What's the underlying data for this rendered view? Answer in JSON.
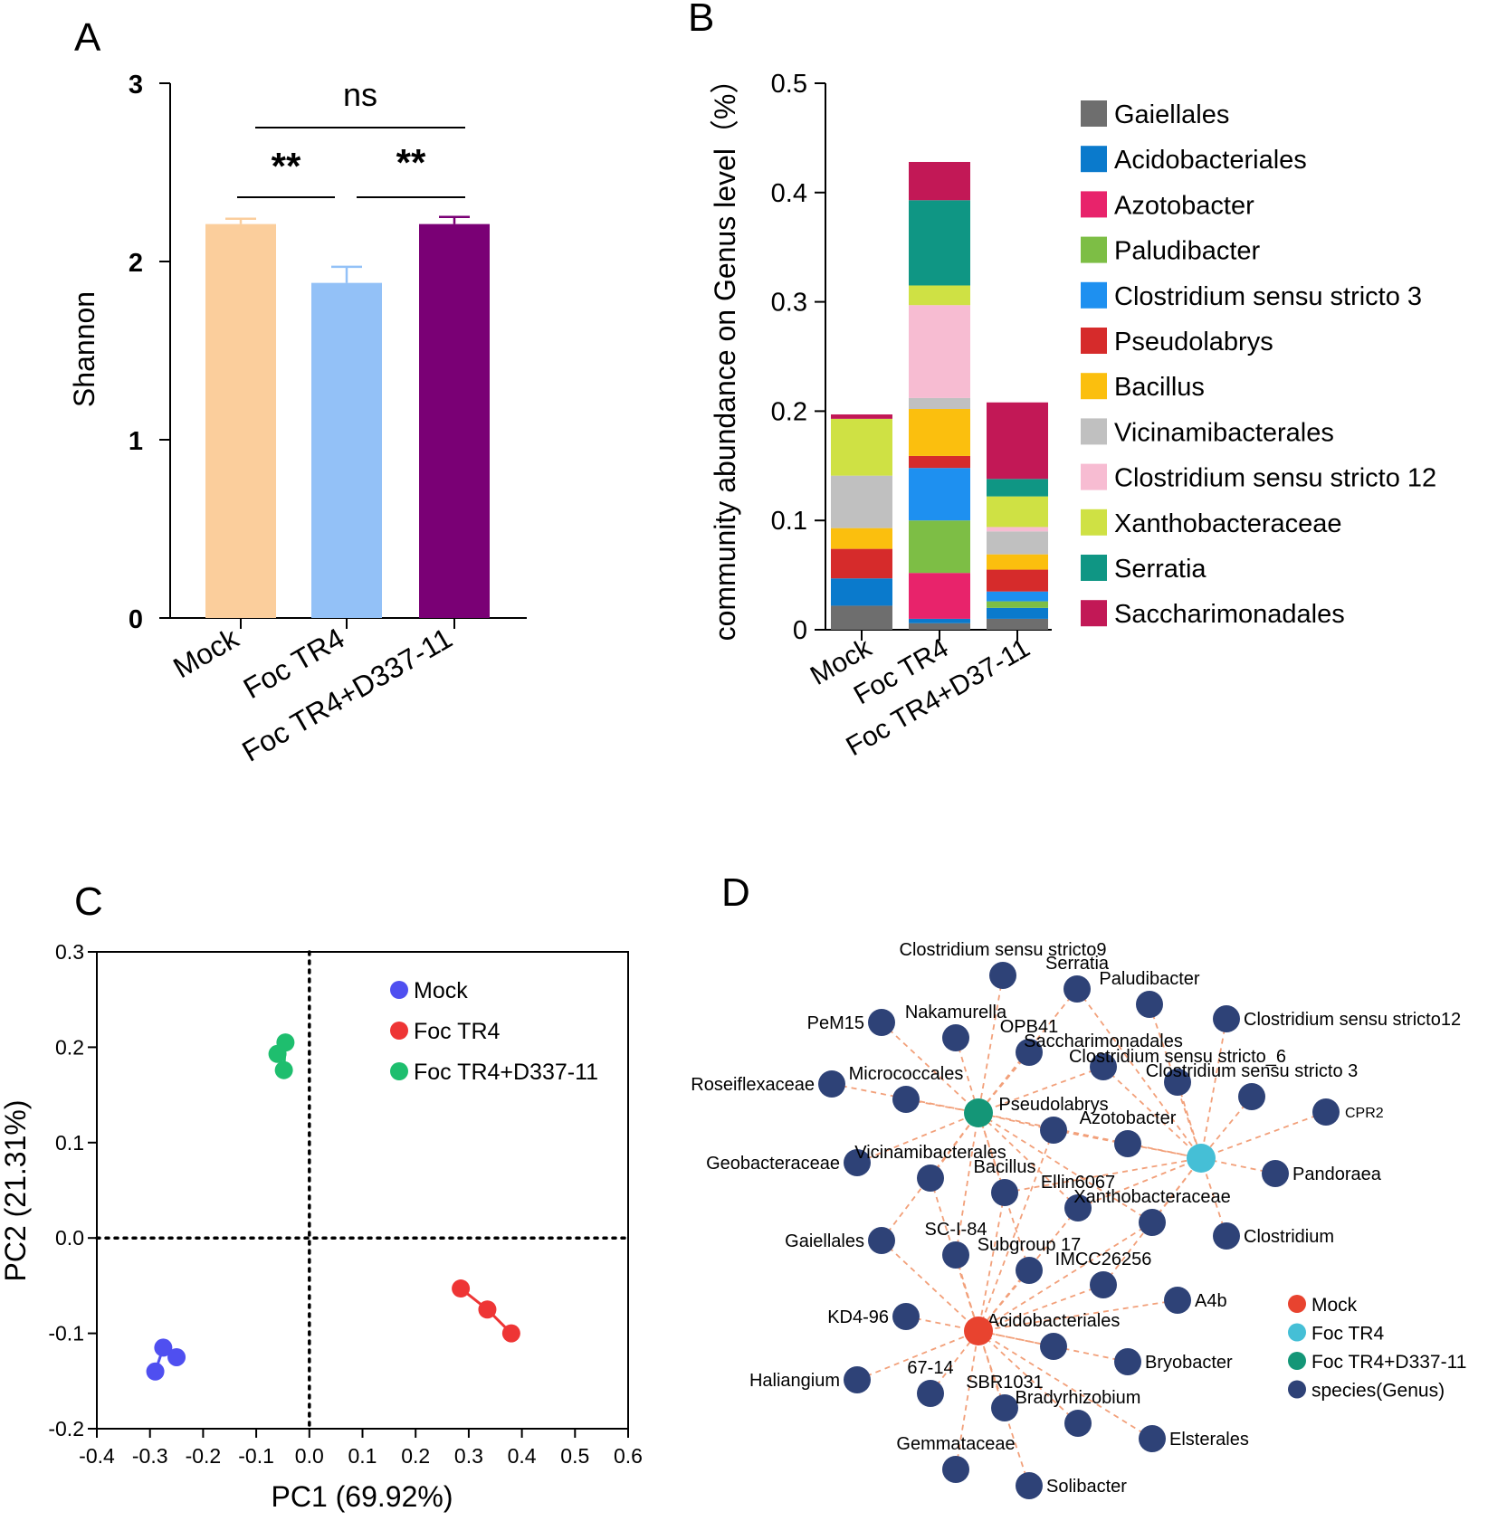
{
  "panels": {
    "a": "A",
    "b": "B",
    "c": "C",
    "d": "D"
  },
  "colors": {
    "mock_bar": "#FBCE9C",
    "foc_bar": "#93C1F7",
    "foc_d337_bar": "#7A0075",
    "net_mock": "#E8432F",
    "net_foc": "#45BFD6",
    "net_foc_d337": "#149677",
    "net_species": "#2E4277",
    "edge": "#F2A07A"
  },
  "chart_data": [
    {
      "id": "A",
      "type": "bar",
      "title": "",
      "xlabel": "",
      "ylabel": "Shannon",
      "ylim": [
        0,
        3
      ],
      "yticks": [
        "0",
        "1",
        "2",
        "3"
      ],
      "categories": [
        "Mock",
        "Foc TR4",
        "Foc TR4+D337-11"
      ],
      "values": [
        2.21,
        1.88,
        2.21
      ],
      "errors": [
        0.03,
        0.09,
        0.04
      ],
      "significance": [
        {
          "from": 0,
          "to": 1,
          "label": "**"
        },
        {
          "from": 1,
          "to": 2,
          "label": "**"
        },
        {
          "from": 0,
          "to": 2,
          "label": "ns"
        }
      ]
    },
    {
      "id": "B",
      "type": "bar",
      "stacked": true,
      "title": "",
      "xlabel": "",
      "ylabel": "community abundance on Genus level（%）",
      "ylim": [
        0,
        0.5
      ],
      "yticks": [
        "0",
        "0.1",
        "0.2",
        "0.3",
        "0.4",
        "0.5"
      ],
      "categories": [
        "Mock",
        "Foc TR4",
        "Foc TR4+D37-11"
      ],
      "series": [
        {
          "name": "Gaiellales",
          "color": "#6E6E6E",
          "values": [
            0.022,
            0.006,
            0.01
          ]
        },
        {
          "name": "Acidobacteriales",
          "color": "#0A7ACC",
          "values": [
            0.025,
            0.004,
            0.01
          ]
        },
        {
          "name": "Azotobacter",
          "color": "#E8236B",
          "values": [
            0.0,
            0.042,
            0.0
          ]
        },
        {
          "name": "Paludibacter",
          "color": "#7DBE45",
          "values": [
            0.0,
            0.048,
            0.006
          ]
        },
        {
          "name": "Clostridium sensu stricto 3",
          "color": "#1E90F0",
          "values": [
            0.0,
            0.048,
            0.009
          ]
        },
        {
          "name": "Pseudolabrys",
          "color": "#D62B2B",
          "values": [
            0.027,
            0.011,
            0.02
          ]
        },
        {
          "name": "Bacillus",
          "color": "#FBBF0E",
          "values": [
            0.019,
            0.043,
            0.014
          ]
        },
        {
          "name": "Vicinamibacterales",
          "color": "#C0C0C0",
          "values": [
            0.048,
            0.01,
            0.021
          ]
        },
        {
          "name": "Clostridium sensu stricto 12",
          "color": "#F7BCD2",
          "values": [
            0.0,
            0.085,
            0.004
          ]
        },
        {
          "name": "Xanthobacteraceae",
          "color": "#CFE144",
          "values": [
            0.052,
            0.018,
            0.028
          ]
        },
        {
          "name": "Serratia",
          "color": "#0F9684",
          "values": [
            0.0,
            0.078,
            0.016
          ]
        },
        {
          "name": "Saccharimonadales",
          "color": "#C21856",
          "values": [
            0.004,
            0.035,
            0.07
          ]
        }
      ]
    },
    {
      "id": "C",
      "type": "scatter",
      "title": "",
      "xlabel": "PC1 (69.92%)",
      "ylabel": "PC2 (21.31%)",
      "xlim": [
        -0.4,
        0.6
      ],
      "ylim": [
        -0.2,
        0.3
      ],
      "xticks": [
        "-0.4",
        "-0.3",
        "-0.2",
        "-0.1",
        "0.0",
        "0.1",
        "0.2",
        "0.3",
        "0.4",
        "0.5",
        "0.6"
      ],
      "yticks": [
        "-0.2",
        "-0.1",
        "0.0",
        "0.1",
        "0.2",
        "0.3"
      ],
      "legend_position": "top-right",
      "series": [
        {
          "name": "Mock",
          "color": "#4F4FF0",
          "points": [
            [
              -0.29,
              -0.14
            ],
            [
              -0.275,
              -0.115
            ],
            [
              -0.25,
              -0.125
            ]
          ]
        },
        {
          "name": "Foc TR4",
          "color": "#EE3535",
          "points": [
            [
              0.285,
              -0.053
            ],
            [
              0.335,
              -0.075
            ],
            [
              0.38,
              -0.1
            ]
          ]
        },
        {
          "name": "Foc TR4+D337-11",
          "color": "#1EBE6E",
          "points": [
            [
              -0.06,
              0.193
            ],
            [
              -0.045,
              0.205
            ],
            [
              -0.048,
              0.176
            ]
          ]
        }
      ]
    }
  ],
  "network": {
    "legend": [
      "Mock",
      "Foc TR4",
      "Foc TR4+D337-11",
      "species(Genus)"
    ],
    "hubs": [
      "Foc TR4+D337-11",
      "Foc TR4",
      "Mock"
    ],
    "nodes": [
      {
        "id": "clo9",
        "label": "Clostridium sensu stricto9",
        "links": [
          0
        ]
      },
      {
        "id": "serratia",
        "label": "Serratia",
        "links": [
          0,
          1
        ]
      },
      {
        "id": "paludibacter",
        "label": "Paludibacter",
        "links": [
          1
        ]
      },
      {
        "id": "clo12",
        "label": "Clostridium sensu stricto12",
        "links": [
          1
        ]
      },
      {
        "id": "pem15",
        "label": "PeM15",
        "links": [
          0
        ]
      },
      {
        "id": "nakamurella",
        "label": "Nakamurella",
        "links": [
          0
        ]
      },
      {
        "id": "opb41",
        "label": "OPB41",
        "links": [
          0
        ]
      },
      {
        "id": "saccharimonadales",
        "label": "Saccharimonadales",
        "links": [
          0,
          1
        ]
      },
      {
        "id": "clo6",
        "label": "Clostridium sensu stricto_6",
        "links": [
          1
        ]
      },
      {
        "id": "clo3",
        "label": "Clostridium sensu stricto 3",
        "links": [
          1
        ]
      },
      {
        "id": "roseiflexaceae",
        "label": "Roseiflexaceae",
        "links": [
          0
        ]
      },
      {
        "id": "micrococcales",
        "label": "Micrococcales",
        "links": [
          0
        ]
      },
      {
        "id": "pseudolabrys",
        "label": "Pseudolabrys",
        "links": [
          0,
          1,
          2
        ]
      },
      {
        "id": "azotobacter",
        "label": "Azotobacter",
        "links": [
          0,
          1
        ]
      },
      {
        "id": "cpr2",
        "label": "CPR2",
        "links": [
          1
        ]
      },
      {
        "id": "geobacteraceae",
        "label": "Geobacteraceae",
        "links": [
          0
        ]
      },
      {
        "id": "vicinamibacterales",
        "label": "Vicinamibacterales",
        "links": [
          0,
          2
        ]
      },
      {
        "id": "bacillus",
        "label": "Bacillus",
        "links": [
          0,
          1,
          2
        ]
      },
      {
        "id": "ellin6067",
        "label": "Ellin6067",
        "links": [
          0,
          1,
          2
        ]
      },
      {
        "id": "pandoraea",
        "label": "Pandoraea",
        "links": [
          1
        ]
      },
      {
        "id": "xanthobacteraceae",
        "label": "Xanthobacteraceae",
        "links": [
          0,
          1,
          2
        ]
      },
      {
        "id": "gaiellales",
        "label": "Gaiellales",
        "links": [
          0,
          2
        ]
      },
      {
        "id": "sci84",
        "label": "SC-I-84",
        "links": [
          0,
          2
        ]
      },
      {
        "id": "subgroup17",
        "label": "Subgroup 17",
        "links": [
          0,
          2
        ]
      },
      {
        "id": "clostridium",
        "label": "Clostridium",
        "links": [
          1
        ]
      },
      {
        "id": "imcc26256",
        "label": "IMCC26256",
        "links": [
          1,
          2
        ]
      },
      {
        "id": "a4b",
        "label": "A4b",
        "links": [
          2
        ]
      },
      {
        "id": "kd496",
        "label": "KD4-96",
        "links": [
          2
        ]
      },
      {
        "id": "acidobacteriales",
        "label": "Acidobacteriales",
        "links": [
          2
        ]
      },
      {
        "id": "bryobacter",
        "label": "Bryobacter",
        "links": [
          2
        ]
      },
      {
        "id": "haliangium",
        "label": "Haliangium",
        "links": [
          2
        ]
      },
      {
        "id": "n6714",
        "label": "67-14",
        "links": [
          2
        ]
      },
      {
        "id": "sbr1031",
        "label": "SBR1031",
        "links": [
          2
        ]
      },
      {
        "id": "bradyrhizobium",
        "label": "Bradyrhizobium",
        "links": [
          2
        ]
      },
      {
        "id": "elsterales",
        "label": "Elsterales",
        "links": [
          2
        ]
      },
      {
        "id": "gemmataceae",
        "label": "Gemmataceae",
        "links": [
          2
        ]
      },
      {
        "id": "solibacter",
        "label": "Solibacter",
        "links": [
          2
        ]
      }
    ]
  }
}
